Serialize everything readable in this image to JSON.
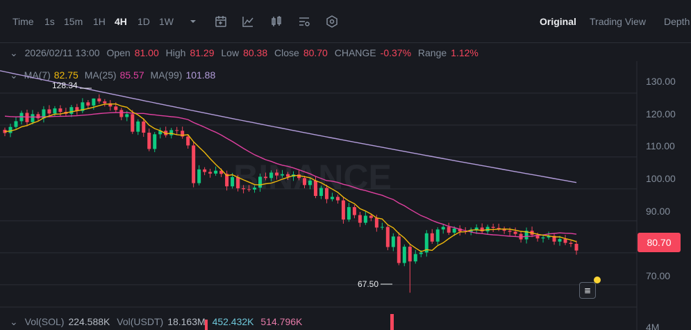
{
  "toolbar": {
    "time_label": "Time",
    "intervals": [
      "1s",
      "15m",
      "1H",
      "4H",
      "1D",
      "1W"
    ],
    "active_interval": "4H",
    "views": [
      "Original",
      "Trading View",
      "Depth"
    ],
    "active_view": "Original"
  },
  "ohlc": {
    "date": "2026/02/11 13:00",
    "open_label": "Open",
    "open": "81.00",
    "high_label": "High",
    "high": "81.29",
    "low_label": "Low",
    "low": "80.38",
    "close_label": "Close",
    "close": "80.70",
    "change_label": "CHANGE",
    "change": "-0.37%",
    "range_label": "Range",
    "range": "1.12%"
  },
  "ma": {
    "ma7_label": "MA(7)",
    "ma7": "82.75",
    "ma25_label": "MA(25)",
    "ma25": "85.57",
    "ma99_label": "MA(99)",
    "ma99": "101.88"
  },
  "volume": {
    "vol_sol_label": "Vol(SOL)",
    "vol_sol": "224.588K",
    "vol_usdt_label": "Vol(USDT)",
    "vol_usdt": "18.163M",
    "v2": "452.432K",
    "v3": "514.796K"
  },
  "axis": {
    "labels": [
      "130.00",
      "120.00",
      "110.00",
      "100.00",
      "90.00",
      "70.00"
    ],
    "vol_label": "4M",
    "current_price": "80.70"
  },
  "annotations": {
    "high": "128.34",
    "low": "67.50"
  },
  "watermark": "BINANCE",
  "colors": {
    "up": "#0ecb81",
    "down": "#f6465d",
    "ma7": "#f0b90b",
    "ma25": "#e040a0",
    "ma99": "#b39ddb",
    "accent": "#fcd535"
  },
  "chart_data": {
    "type": "candlestick",
    "ylim": [
      63,
      140
    ],
    "closes": [
      117.5,
      119.4,
      121.2,
      123.8,
      120.9,
      123.4,
      122.1,
      124.9,
      123.6,
      125.2,
      124.1,
      123.5,
      125.6,
      124.4,
      127.1,
      126.1,
      128.3,
      127.4,
      126.8,
      125.8,
      124.7,
      122.5,
      123.4,
      117.9,
      121.1,
      117.6,
      112.5,
      117.1,
      118.2,
      116.8,
      118.4,
      118.2,
      116.4,
      113.6,
      101.8,
      106.1,
      105.3,
      104.8,
      105.7,
      104.7,
      100.8,
      103.7,
      100.2,
      99.9,
      99.8,
      100.4,
      103.8,
      103.4,
      105.1,
      104.2,
      104.6,
      103.8,
      104.5,
      103.4,
      101.2,
      102.6,
      97.8,
      100.3,
      96.8,
      97.5,
      96.4,
      90.4,
      94.3,
      91.8,
      89.4,
      91.6,
      90.9,
      87.9,
      88.1,
      81.8,
      85.1,
      76.8,
      81.9,
      77.3,
      79.6,
      80.1,
      86.1,
      83.5,
      87.3,
      88.1,
      86.3,
      87.6,
      86.7,
      86.5,
      87.2,
      87.9,
      86.7,
      88.1,
      87.8,
      87.5,
      86.9,
      86.6,
      85.9,
      84.2,
      86.9,
      85.6,
      84.5,
      84.8,
      85.3,
      83.5,
      84.3,
      83.1,
      82.8,
      80.7
    ]
  }
}
